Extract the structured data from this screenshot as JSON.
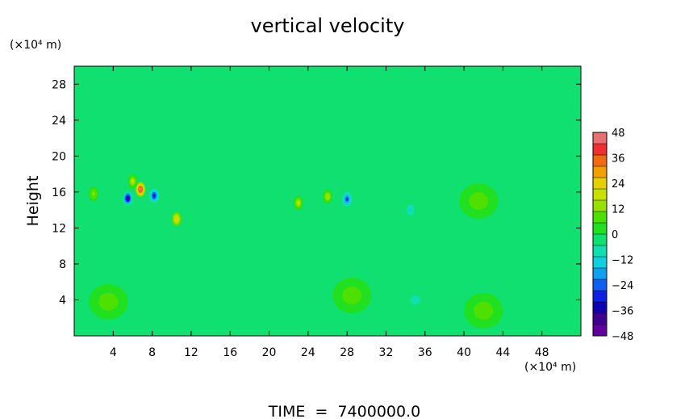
{
  "chart_data": {
    "type": "heatmap",
    "title": "vertical velocity",
    "ylabel": "Height",
    "x_unit": "(×10⁴ m)",
    "y_unit": "(×10⁴ m)",
    "footer": "TIME  =  7400000.0",
    "xlim": [
      0,
      52
    ],
    "ylim": [
      0,
      30
    ],
    "x_ticks": [
      4,
      8,
      12,
      16,
      20,
      24,
      28,
      32,
      36,
      40,
      44,
      48
    ],
    "y_ticks": [
      4,
      8,
      12,
      16,
      20,
      24,
      28
    ],
    "colorbar": {
      "labels": [
        48,
        36,
        24,
        12,
        0,
        -12,
        -24,
        -36,
        -48
      ],
      "range": [
        -48,
        48
      ],
      "colors": [
        "#e87070",
        "#f03030",
        "#f06a10",
        "#f0a000",
        "#e8d000",
        "#c8e000",
        "#98e000",
        "#50e000",
        "#20e020",
        "#10e070",
        "#10e0b0",
        "#10d0e0",
        "#10a0f0",
        "#1060f0",
        "#1020e0",
        "#1000b0",
        "#400090",
        "#6000a0"
      ]
    },
    "field": {
      "background_value": 0,
      "features": [
        {
          "x": 5.5,
          "y": 15.3,
          "value": -38
        },
        {
          "x": 6.8,
          "y": 16.3,
          "value": 44
        },
        {
          "x": 8.2,
          "y": 15.6,
          "value": -30
        },
        {
          "x": 6.0,
          "y": 17.2,
          "value": 20
        },
        {
          "x": 10.5,
          "y": 13.0,
          "value": 22
        },
        {
          "x": 2.0,
          "y": 15.8,
          "value": 14
        },
        {
          "x": 23.0,
          "y": 14.8,
          "value": 18
        },
        {
          "x": 26.0,
          "y": 15.5,
          "value": 16
        },
        {
          "x": 28.0,
          "y": 15.2,
          "value": -28
        },
        {
          "x": 34.5,
          "y": 14.0,
          "value": -12
        },
        {
          "x": 41.5,
          "y": 15.0,
          "value": 9
        },
        {
          "x": 3.5,
          "y": 3.8,
          "value": 8
        },
        {
          "x": 28.5,
          "y": 4.5,
          "value": 8
        },
        {
          "x": 42.0,
          "y": 2.8,
          "value": 8
        },
        {
          "x": 13.5,
          "y": 6.0,
          "value": -5
        },
        {
          "x": 35.0,
          "y": 4.0,
          "value": -6
        },
        {
          "x": 48.5,
          "y": 3.5,
          "value": -4
        }
      ]
    }
  }
}
